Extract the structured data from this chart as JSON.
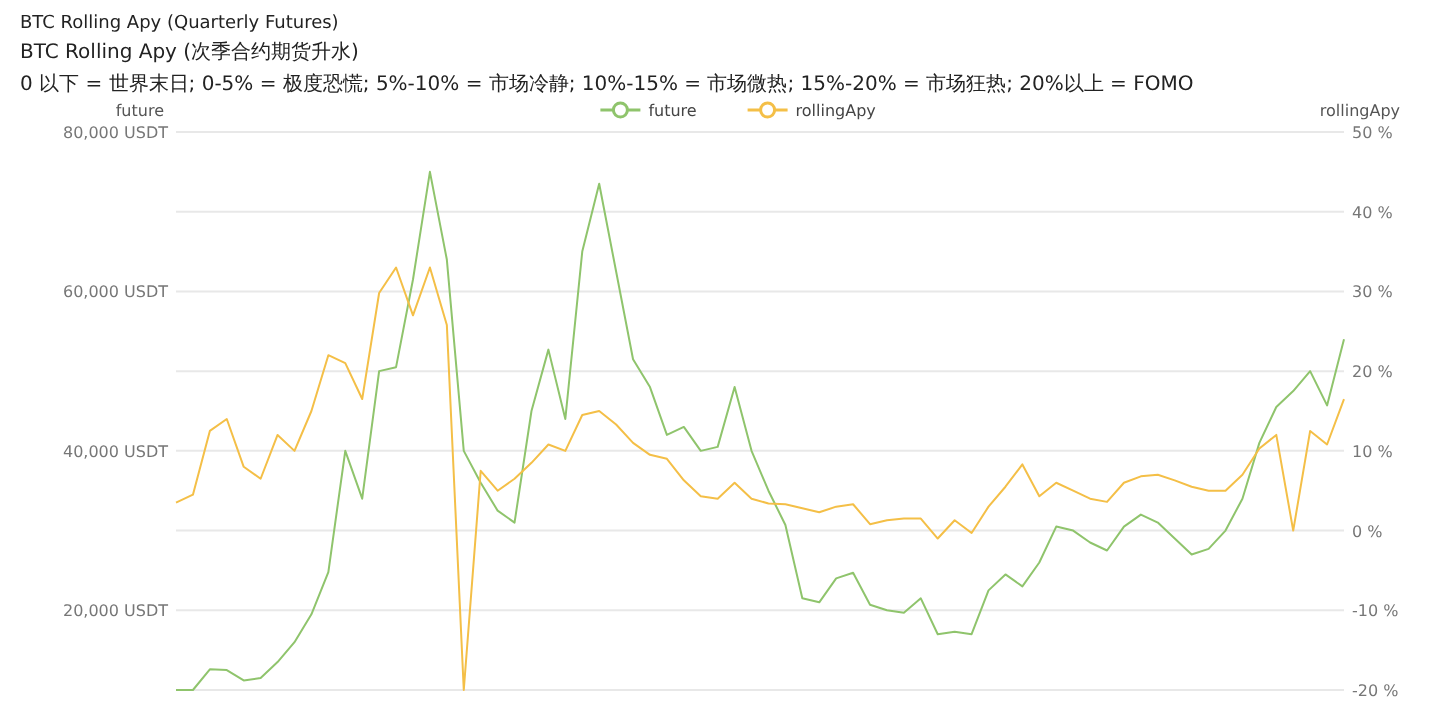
{
  "chart_data": {
    "type": "line",
    "title": "BTC Rolling Apy (Quarterly Futures)",
    "subtitle": "BTC Rolling Apy (次季合约期货升水)",
    "annotations": [
      "0 以下 = 世界末日; 0-5% = 极度恐慌; 5%-10% = 市场冷静; 10%-15% = 市场微热; 15%-20% = 市场狂热; 20%以上 = FOMO"
    ],
    "ylabel": "future",
    "y2label": "rollingApy",
    "categories": [
      null,
      null,
      null,
      null,
      null,
      null,
      null,
      null,
      null,
      null,
      null,
      null,
      null,
      null,
      null,
      null,
      null,
      null,
      null,
      null,
      null,
      null,
      null,
      null,
      null,
      null,
      null,
      null,
      null,
      null,
      null,
      null,
      null,
      null,
      null,
      null,
      null,
      null,
      null,
      null,
      null,
      null,
      null,
      null,
      null,
      null,
      null,
      null,
      null,
      null,
      null,
      null,
      null,
      null,
      null,
      null,
      null,
      null,
      null,
      null,
      null,
      null,
      null,
      null,
      null,
      null,
      null,
      null,
      null,
      null
    ],
    "series": [
      {
        "name": "future",
        "color": "#8fc46c",
        "values": [
          10000,
          10000,
          12600,
          12500,
          11200,
          11500,
          13500,
          16000,
          19500,
          24800,
          40000,
          34000,
          50000,
          50500,
          61500,
          75000,
          64000,
          40000,
          36000,
          32500,
          31000,
          45000,
          52700,
          44000,
          65000,
          73500,
          62500,
          51500,
          48000,
          42000,
          43000,
          40000,
          40500,
          48000,
          40000,
          35000,
          30700,
          21500,
          21000,
          24000,
          24700,
          20700,
          20000,
          19700,
          21500,
          17000,
          17300,
          17000,
          22500,
          24500,
          23000,
          26000,
          30500,
          30000,
          28500,
          27500,
          30500,
          32000,
          31000,
          29000,
          27000,
          27700,
          30000,
          34000,
          41000,
          45500,
          47500,
          50000,
          45700,
          54000
        ]
      },
      {
        "name": "rollingApy",
        "color": "#f4bf47",
        "axis": "y2",
        "values": [
          3.5,
          4.5,
          12.5,
          14,
          8,
          6.5,
          12,
          10,
          15,
          22,
          21,
          16.5,
          29.8,
          33,
          27,
          33,
          25.8,
          -20,
          7.5,
          5,
          6.5,
          8.5,
          10.8,
          10,
          14.5,
          15,
          13.3,
          11,
          9.5,
          9,
          6.3,
          4.3,
          4,
          6,
          4,
          3.4,
          3.3,
          2.8,
          2.3,
          3,
          3.3,
          0.8,
          1.3,
          1.5,
          1.5,
          -1,
          1.3,
          -0.3,
          3,
          5.5,
          8.3,
          4.3,
          6,
          5,
          4,
          3.6,
          6,
          6.8,
          7,
          6.3,
          5.5,
          5,
          5,
          7,
          10.3,
          12,
          0,
          12.5,
          10.8,
          16.5
        ]
      }
    ],
    "ylim": [
      10000,
      80000
    ],
    "yticks": [
      {
        "value": 10000,
        "label": null
      },
      {
        "value": 20000,
        "label": "20,000 USDT"
      },
      {
        "value": 30000,
        "label": null
      },
      {
        "value": 40000,
        "label": "40,000 USDT"
      },
      {
        "value": 50000,
        "label": null
      },
      {
        "value": 60000,
        "label": "60,000 USDT"
      },
      {
        "value": 70000,
        "label": null
      },
      {
        "value": 80000,
        "label": "80,000 USDT"
      }
    ],
    "y2lim": [
      -20,
      50
    ],
    "y2ticks": [
      {
        "value": -20,
        "label": "-20 %"
      },
      {
        "value": -10,
        "label": "-10 %"
      },
      {
        "value": 0,
        "label": "0 %"
      },
      {
        "value": 10,
        "label": "10 %"
      },
      {
        "value": 20,
        "label": "20 %"
      },
      {
        "value": 30,
        "label": "30 %"
      },
      {
        "value": 40,
        "label": "40 %"
      },
      {
        "value": 50,
        "label": "50 %"
      }
    ],
    "grid": "y",
    "legend": "top",
    "marker": "none",
    "line_style": "solid"
  }
}
